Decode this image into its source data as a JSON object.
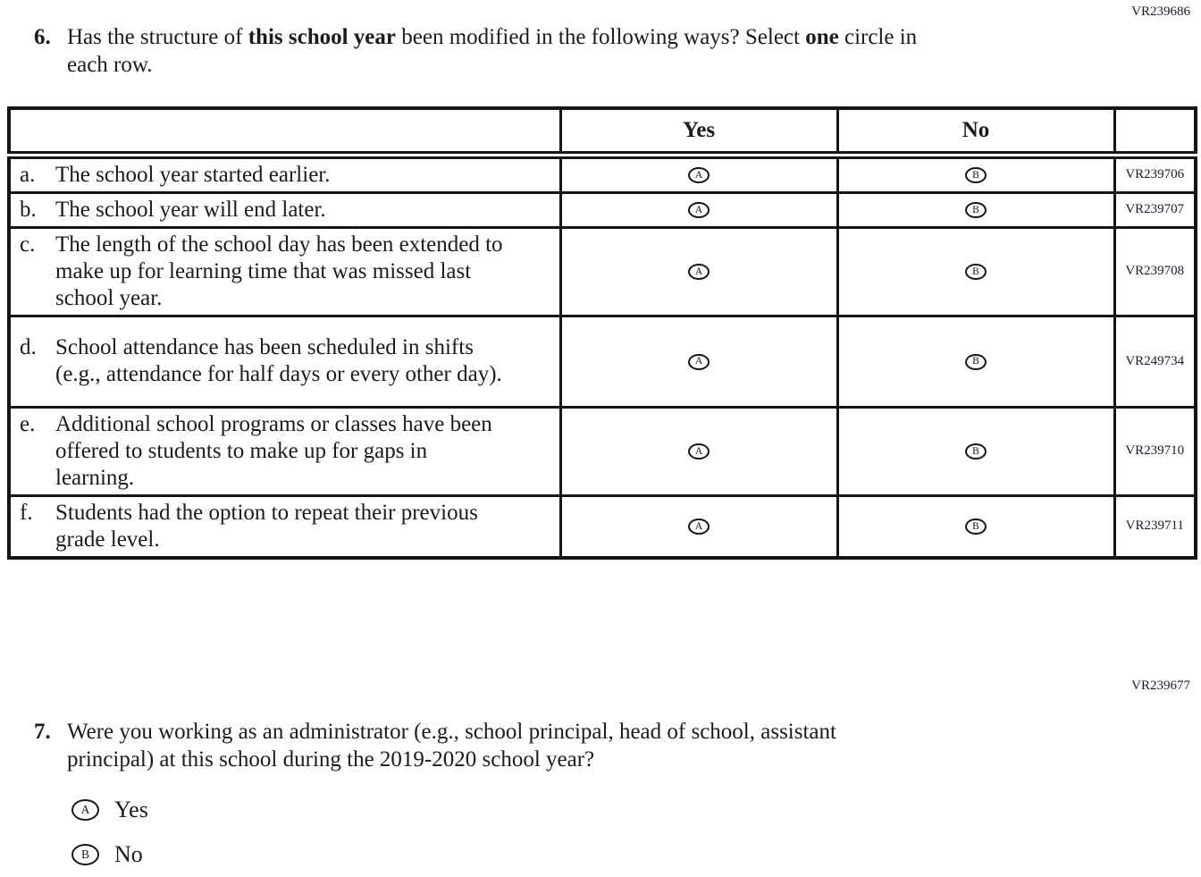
{
  "q6": {
    "code": "VR239686",
    "number": "6.",
    "prompt_segments": [
      {
        "text": "Has the structure of ",
        "bold": false
      },
      {
        "text": "this school year",
        "bold": true
      },
      {
        "text": " been modified in the following ways? Select ",
        "bold": false
      },
      {
        "text": "one",
        "bold": true
      },
      {
        "text": " circle in each row.",
        "bold": false
      }
    ],
    "table": {
      "headers": {
        "statement": "",
        "yes": "Yes",
        "no": "No",
        "code": ""
      },
      "options": {
        "yes_letter": "A",
        "no_letter": "B"
      },
      "rows": [
        {
          "label": "a.",
          "statement": "The school year started earlier.",
          "code": "VR239706"
        },
        {
          "label": "b.",
          "statement": "The school year will end later.",
          "code": "VR239707"
        },
        {
          "label": "c.",
          "statement": "The length of the school day has been extended to make up for learning time that was missed last school year.",
          "code": "VR239708"
        },
        {
          "label": "d.",
          "statement": "School attendance has been scheduled in shifts (e.g., attendance for half days or every other day).",
          "code": "VR249734"
        },
        {
          "label": "e.",
          "statement": "Additional school programs or classes have been offered to students to make up for gaps in learning.",
          "code": "VR239710"
        },
        {
          "label": "f.",
          "statement": "Students had the option to repeat their previous grade level.",
          "code": "VR239711"
        }
      ]
    }
  },
  "q7": {
    "code": "VR239677",
    "number": "7.",
    "prompt": "Were you working as an administrator (e.g., school principal, head of school, assistant principal) at this school during the 2019-2020 school year?",
    "options": [
      {
        "letter": "A",
        "label": "Yes"
      },
      {
        "letter": "B",
        "label": "No"
      }
    ]
  }
}
